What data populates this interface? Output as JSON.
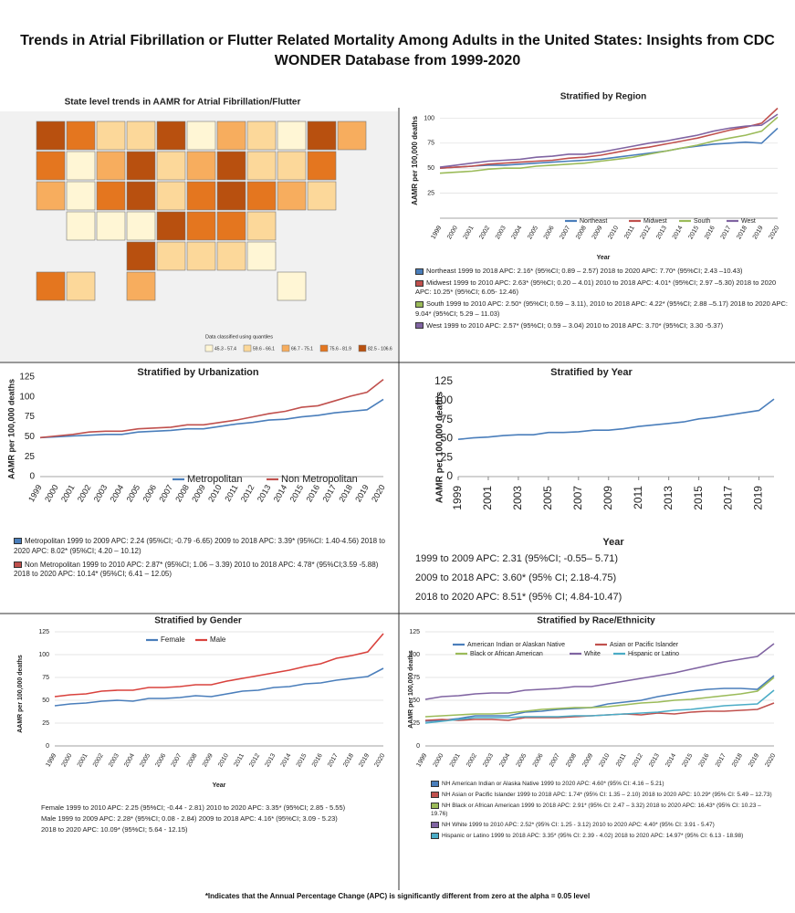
{
  "title": "Trends in Atrial Fibrillation or Flutter Related Mortality Among Adults in the United States: Insights from CDC WONDER Database from 1999-2020",
  "map": {
    "title": "State level trends in AAMR for Atrial Fibrillation/Flutter",
    "legend_title": "Data classified using quantiles",
    "legend_labels": [
      "45.3 - 57.4",
      "59.6 - 66.1",
      "66.7 - 75.1",
      "75.6 - 81.9",
      "82.5 - 106.6"
    ],
    "colors": [
      "#fff6d5",
      "#fcd89a",
      "#f7ad5e",
      "#e4761f",
      "#b8500f"
    ]
  },
  "chart_data": [
    {
      "type": "line",
      "title": "Stratified by Region",
      "ylabel": "AAMR per 100,000 deaths",
      "xlabel": "Year",
      "categories": [
        "1999",
        "2000",
        "2001",
        "2002",
        "2003",
        "2004",
        "2005",
        "2006",
        "2007",
        "2008",
        "2009",
        "2010",
        "2011",
        "2012",
        "2013",
        "2014",
        "2015",
        "2016",
        "2017",
        "2018",
        "2019",
        "2020"
      ],
      "series": [
        {
          "name": "Northeast",
          "color": "#4a7ebb",
          "values": [
            50,
            51,
            52,
            53,
            53,
            54,
            55,
            56,
            57,
            58,
            59,
            61,
            63,
            65,
            67,
            70,
            72,
            74,
            75,
            76,
            75,
            90
          ]
        },
        {
          "name": "Midwest",
          "color": "#c0504d",
          "values": [
            50,
            51,
            52,
            54,
            55,
            56,
            57,
            58,
            60,
            61,
            63,
            66,
            69,
            71,
            74,
            77,
            80,
            84,
            88,
            91,
            95,
            110
          ]
        },
        {
          "name": "South",
          "color": "#9bbb59",
          "values": [
            45,
            46,
            47,
            49,
            50,
            50,
            52,
            53,
            54,
            55,
            57,
            59,
            61,
            64,
            67,
            70,
            73,
            77,
            80,
            83,
            87,
            101
          ]
        },
        {
          "name": "West",
          "color": "#8064a2",
          "values": [
            51,
            53,
            55,
            57,
            58,
            59,
            61,
            62,
            64,
            64,
            66,
            69,
            72,
            75,
            77,
            80,
            83,
            87,
            90,
            92,
            93,
            104
          ]
        }
      ],
      "ylim": [
        0,
        115
      ],
      "yticks": [
        25,
        50,
        75,
        100
      ],
      "grid": true,
      "legend": "bottom",
      "notes": [
        "Northeast 1999 to 2018 APC: 2.16* (95%CI; 0.89 – 2.57) 2018 to 2020 APC: 7.70* (95%CI; 2.43 –10.43)",
        "Midwest 1999 to 2010 APC: 2.63* (95%CI; 0.20 – 4.01) 2010 to 2018 APC: 4.01* (95%CI; 2.97 –5.30) 2018 to 2020 APC: 10.25* (95%CI; 6.05- 12.46)",
        "South 1999 to 2010 APC: 2.50* (95%CI; 0.59 – 3.11), 2010 to 2018 APC: 4.22* (95%CI; 2.88 –5.17) 2018 to 2020 APC: 9.04* (95%CI; 5.29 – 11.03)",
        "West 1999 to 2010 APC: 2.57* (95%CI; 0.59 – 3.04) 2010 to 2018 APC: 3.70* (95%CI; 3.30 -5.37)"
      ]
    },
    {
      "type": "line",
      "title": "Stratified by Urbanization",
      "ylabel": "AAMR per 100,000 deaths",
      "categories": [
        "1999",
        "2000",
        "2001",
        "2002",
        "2003",
        "2004",
        "2005",
        "2006",
        "2007",
        "2008",
        "2009",
        "2010",
        "2011",
        "2012",
        "2013",
        "2014",
        "2015",
        "2016",
        "2017",
        "2018",
        "2019",
        "2020"
      ],
      "series": [
        {
          "name": "Metropolitan",
          "color": "#4a7ebb",
          "values": [
            49,
            50,
            51,
            52,
            53,
            53,
            56,
            57,
            58,
            60,
            60,
            63,
            66,
            68,
            71,
            72,
            75,
            77,
            80,
            82,
            84,
            97
          ]
        },
        {
          "name": "Non Metropolitan",
          "color": "#c0504d",
          "values": [
            49,
            51,
            53,
            56,
            57,
            57,
            60,
            61,
            62,
            65,
            65,
            68,
            71,
            75,
            79,
            82,
            87,
            89,
            95,
            101,
            106,
            122
          ]
        }
      ],
      "ylim": [
        0,
        125
      ],
      "yticks": [
        0,
        25,
        50,
        75,
        100,
        125
      ],
      "grid": false,
      "legend": "bottom",
      "notes": [
        "Metropolitan 1999 to 2009 APC: 2.24 (95%CI; -0.79 -6.65) 2009 to 2018 APC: 3.39* (95%CI: 1.40-4.56) 2018 to 2020 APC: 8.02* (95%CI; 4.20 – 10.12)",
        "Non Metropolitan 1999 to 2010 APC: 2.87* (95%CI; 1.06 – 3.39) 2010 to 2018 APC: 4.78* (95%CI;3.59 -5.88) 2018 to 2020 APC: 10.14* (95%CI; 6.41 – 12.05)"
      ]
    },
    {
      "type": "line",
      "title": "Stratified by Year",
      "ylabel": "AAMR per 100,000 deaths",
      "xlabel": "Year",
      "x": [
        1999,
        2000,
        2001,
        2002,
        2003,
        2004,
        2005,
        2006,
        2007,
        2008,
        2009,
        2010,
        2011,
        2012,
        2013,
        2014,
        2015,
        2016,
        2017,
        2018,
        2019,
        2020
      ],
      "values": [
        49,
        51,
        52,
        54,
        55,
        55,
        58,
        58,
        59,
        61,
        61,
        63,
        66,
        68,
        70,
        72,
        76,
        78,
        81,
        84,
        87,
        102
      ],
      "color": "#4a7ebb",
      "xlim": [
        1999,
        2020
      ],
      "xticks": [
        1999,
        2001,
        2003,
        2005,
        2007,
        2009,
        2011,
        2013,
        2015,
        2017,
        2019
      ],
      "ylim": [
        0,
        125
      ],
      "yticks": [
        0,
        25,
        50,
        75,
        100,
        125
      ],
      "grid": false,
      "notes": [
        "1999 to 2009 APC: 2.31 (95%CI; -0.55– 5.71)",
        "2009 to 2018 APC: 3.60* (95% CI; 2.18-4.75)",
        "2018 to 2020 APC: 8.51* (95% CI; 4.84-10.47)"
      ]
    },
    {
      "type": "line",
      "title": "Stratified by Gender",
      "ylabel": "AAMR per 100,000 deaths",
      "xlabel": "Year",
      "categories": [
        "1999",
        "2000",
        "2001",
        "2002",
        "2003",
        "2004",
        "2005",
        "2006",
        "2007",
        "2008",
        "2009",
        "2010",
        "2011",
        "2012",
        "2013",
        "2014",
        "2015",
        "2016",
        "2017",
        "2018",
        "2019",
        "2020"
      ],
      "series": [
        {
          "name": "Female",
          "color": "#4a7ebb",
          "values": [
            44,
            46,
            47,
            49,
            50,
            49,
            52,
            52,
            53,
            55,
            54,
            57,
            60,
            61,
            64,
            65,
            68,
            69,
            72,
            74,
            76,
            85
          ]
        },
        {
          "name": "Male",
          "color": "#d9423d",
          "values": [
            54,
            56,
            57,
            60,
            61,
            61,
            64,
            64,
            65,
            67,
            67,
            71,
            74,
            77,
            80,
            83,
            87,
            90,
            96,
            99,
            103,
            123
          ]
        }
      ],
      "ylim": [
        0,
        125
      ],
      "yticks": [
        0,
        25,
        50,
        75,
        100,
        125
      ],
      "grid": true,
      "legend": "top",
      "notes": [
        "Female 1999 to 2010 APC: 2.25 (95%CI; -0.44 - 2.81) 2010 to 2020 APC: 3.35* (95%CI; 2.85 - 5.55)",
        "Male 1999 to 2009 APC: 2.28* (95%CI; 0.08 - 2.84) 2009 to 2018 APC: 4.16* (95%CI; 3.09 - 5.23)",
        "2018 to 2020 APC: 10.09* (95%CI; 5.64 - 12.15)"
      ]
    },
    {
      "type": "line",
      "title": "Stratified by Race/Ethnicity",
      "ylabel": "AAMR per 100,000 deaths",
      "categories": [
        "1999",
        "2000",
        "2001",
        "2002",
        "2003",
        "2004",
        "2005",
        "2006",
        "2007",
        "2008",
        "2009",
        "2010",
        "2011",
        "2012",
        "2013",
        "2014",
        "2015",
        "2016",
        "2017",
        "2018",
        "2019",
        "2020"
      ],
      "series": [
        {
          "name": "American Indian or Alaskan Native",
          "color": "#4a7ebb",
          "values": [
            27,
            28,
            30,
            33,
            33,
            33,
            37,
            38,
            40,
            41,
            42,
            46,
            48,
            50,
            54,
            57,
            60,
            62,
            63,
            63,
            62,
            77
          ]
        },
        {
          "name": "Asian or Pacific Islander",
          "color": "#c0504d",
          "values": [
            28,
            29,
            28,
            29,
            29,
            28,
            31,
            31,
            31,
            32,
            33,
            34,
            35,
            34,
            36,
            35,
            37,
            38,
            38,
            39,
            40,
            47
          ]
        },
        {
          "name": "Black or African American",
          "color": "#9bbb59",
          "values": [
            32,
            33,
            34,
            35,
            35,
            36,
            38,
            40,
            41,
            42,
            42,
            43,
            45,
            47,
            48,
            50,
            51,
            53,
            55,
            57,
            60,
            75
          ]
        },
        {
          "name": "White",
          "color": "#8064a2",
          "values": [
            51,
            54,
            55,
            57,
            58,
            58,
            61,
            62,
            63,
            65,
            65,
            68,
            71,
            74,
            77,
            80,
            84,
            88,
            92,
            95,
            98,
            112
          ]
        },
        {
          "name": "Hispanic or Latino",
          "color": "#4bacc6",
          "values": [
            25,
            27,
            29,
            31,
            31,
            31,
            32,
            32,
            32,
            33,
            33,
            34,
            35,
            36,
            37,
            39,
            40,
            42,
            44,
            45,
            46,
            61
          ]
        }
      ],
      "ylim": [
        0,
        125
      ],
      "yticks": [
        0,
        25,
        50,
        75,
        100,
        125
      ],
      "grid": true,
      "legend": "top",
      "notes": [
        "NH American Indian or Alaska Native 1999 to 2020 APC: 4.60* (95% CI: 4.16 – 5.21)",
        "NH Asian or Pacific Islander 1999 to 2018 APC: 1.74* (95% CI: 1.35 – 2.10) 2018 to 2020 APC: 10.29* (95% CI: 5.49 – 12.73)",
        "NH Black or African American 1999 to 2018 APC: 2.91* (95% CI: 2.47 – 3.32) 2018 to 2020 APC: 16.43* (95% CI: 10.23 – 19.76)",
        "NH White 1999 to 2010 APC: 2.52* (95% CI: 1.25 - 3.12) 2010 to 2020 APC: 4.40* (95% CI: 3.91 - 5.47)",
        "Hispanic or Latino 1999 to 2018 APC: 3.35* (95% CI: 2.39 - 4.02) 2018 to 2020 APC: 14.97* (95% CI: 6.13 - 18.98)"
      ]
    }
  ],
  "footnote": "*Indicates that the Annual Percentage Change (APC) is significantly different from zero at the alpha = 0.05 level"
}
